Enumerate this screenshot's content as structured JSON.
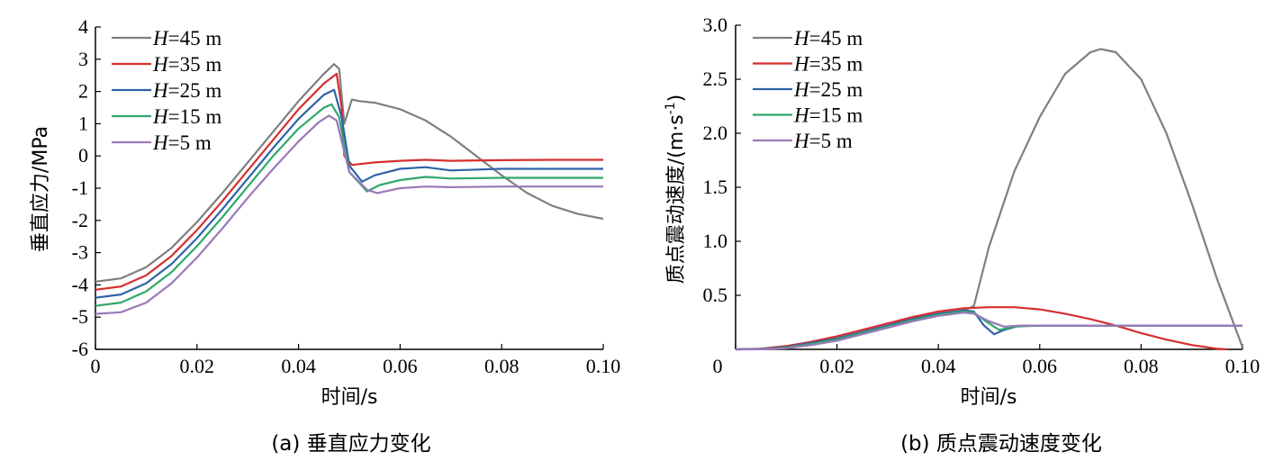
{
  "chart_data": [
    {
      "type": "line",
      "caption": "(a)  垂直应力变化",
      "xlabel": "时间/s",
      "ylabel": "垂直应力/MPa",
      "xlim": [
        0,
        0.1
      ],
      "ylim": [
        -6,
        4
      ],
      "xticks": [
        "0",
        "0.02",
        "0.04",
        "0.06",
        "0.08",
        "0.10"
      ],
      "xtick_values": [
        0,
        0.02,
        0.04,
        0.06,
        0.08,
        0.1
      ],
      "yticks": [
        "-6",
        "-5",
        "-4",
        "-3",
        "-2",
        "-1",
        "0",
        "1",
        "2",
        "3",
        "4"
      ],
      "ytick_values": [
        -6,
        -5,
        -4,
        -3,
        -2,
        -1,
        0,
        1,
        2,
        3,
        4
      ],
      "grid": false,
      "legend_position": "top-left",
      "series": [
        {
          "name": "H=45 m",
          "label_var": "H",
          "label_rest": "=45 m",
          "color": "#7f7f7f",
          "points": [
            [
              0,
              -3.9
            ],
            [
              0.005,
              -3.8
            ],
            [
              0.01,
              -3.45
            ],
            [
              0.015,
              -2.85
            ],
            [
              0.02,
              -2.05
            ],
            [
              0.025,
              -1.15
            ],
            [
              0.03,
              -0.2
            ],
            [
              0.035,
              0.75
            ],
            [
              0.04,
              1.7
            ],
            [
              0.045,
              2.55
            ],
            [
              0.047,
              2.85
            ],
            [
              0.048,
              2.7
            ],
            [
              0.049,
              1.0
            ],
            [
              0.0505,
              1.75
            ],
            [
              0.052,
              1.7
            ],
            [
              0.055,
              1.65
            ],
            [
              0.06,
              1.45
            ],
            [
              0.065,
              1.1
            ],
            [
              0.07,
              0.6
            ],
            [
              0.075,
              0.0
            ],
            [
              0.08,
              -0.6
            ],
            [
              0.085,
              -1.15
            ],
            [
              0.09,
              -1.55
            ],
            [
              0.095,
              -1.8
            ],
            [
              0.1,
              -1.95
            ]
          ]
        },
        {
          "name": "H=35 m",
          "label_var": "H",
          "label_rest": "=35 m",
          "color": "#d62f2f",
          "points": [
            [
              0,
              -4.15
            ],
            [
              0.005,
              -4.05
            ],
            [
              0.01,
              -3.7
            ],
            [
              0.015,
              -3.1
            ],
            [
              0.02,
              -2.3
            ],
            [
              0.025,
              -1.4
            ],
            [
              0.03,
              -0.45
            ],
            [
              0.035,
              0.5
            ],
            [
              0.04,
              1.45
            ],
            [
              0.045,
              2.25
            ],
            [
              0.0475,
              2.55
            ],
            [
              0.0485,
              1.5
            ],
            [
              0.049,
              0.0
            ],
            [
              0.0505,
              -0.28
            ],
            [
              0.055,
              -0.2
            ],
            [
              0.06,
              -0.15
            ],
            [
              0.065,
              -0.12
            ],
            [
              0.07,
              -0.15
            ],
            [
              0.08,
              -0.13
            ],
            [
              0.09,
              -0.12
            ],
            [
              0.1,
              -0.12
            ]
          ]
        },
        {
          "name": "H=25 m",
          "label_var": "H",
          "label_rest": "=25 m",
          "color": "#2e63a6",
          "points": [
            [
              0,
              -4.4
            ],
            [
              0.005,
              -4.3
            ],
            [
              0.01,
              -3.95
            ],
            [
              0.015,
              -3.35
            ],
            [
              0.02,
              -2.55
            ],
            [
              0.025,
              -1.65
            ],
            [
              0.03,
              -0.7
            ],
            [
              0.035,
              0.25
            ],
            [
              0.04,
              1.15
            ],
            [
              0.045,
              1.9
            ],
            [
              0.047,
              2.05
            ],
            [
              0.0485,
              1.2
            ],
            [
              0.05,
              -0.3
            ],
            [
              0.0525,
              -0.8
            ],
            [
              0.055,
              -0.6
            ],
            [
              0.06,
              -0.4
            ],
            [
              0.065,
              -0.35
            ],
            [
              0.07,
              -0.45
            ],
            [
              0.08,
              -0.4
            ],
            [
              0.09,
              -0.4
            ],
            [
              0.1,
              -0.4
            ]
          ]
        },
        {
          "name": "H=15 m",
          "label_var": "H",
          "label_rest": "=15 m",
          "color": "#2fa86b",
          "points": [
            [
              0,
              -4.65
            ],
            [
              0.005,
              -4.55
            ],
            [
              0.01,
              -4.2
            ],
            [
              0.015,
              -3.6
            ],
            [
              0.02,
              -2.8
            ],
            [
              0.025,
              -1.9
            ],
            [
              0.03,
              -0.95
            ],
            [
              0.035,
              0.0
            ],
            [
              0.04,
              0.85
            ],
            [
              0.045,
              1.5
            ],
            [
              0.0465,
              1.6
            ],
            [
              0.048,
              1.2
            ],
            [
              0.05,
              -0.5
            ],
            [
              0.0535,
              -1.1
            ],
            [
              0.056,
              -0.9
            ],
            [
              0.06,
              -0.75
            ],
            [
              0.065,
              -0.65
            ],
            [
              0.07,
              -0.7
            ],
            [
              0.08,
              -0.68
            ],
            [
              0.09,
              -0.68
            ],
            [
              0.1,
              -0.68
            ]
          ]
        },
        {
          "name": "H=5 m",
          "label_var": "H",
          "label_rest": "=5 m",
          "color": "#9a78b8",
          "points": [
            [
              0,
              -4.9
            ],
            [
              0.005,
              -4.85
            ],
            [
              0.01,
              -4.55
            ],
            [
              0.015,
              -3.95
            ],
            [
              0.02,
              -3.15
            ],
            [
              0.025,
              -2.25
            ],
            [
              0.03,
              -1.3
            ],
            [
              0.035,
              -0.4
            ],
            [
              0.04,
              0.45
            ],
            [
              0.044,
              1.05
            ],
            [
              0.046,
              1.25
            ],
            [
              0.0475,
              1.1
            ],
            [
              0.05,
              -0.5
            ],
            [
              0.0535,
              -1.05
            ],
            [
              0.0555,
              -1.15
            ],
            [
              0.06,
              -1.0
            ],
            [
              0.065,
              -0.95
            ],
            [
              0.07,
              -0.97
            ],
            [
              0.08,
              -0.95
            ],
            [
              0.09,
              -0.95
            ],
            [
              0.1,
              -0.95
            ]
          ]
        }
      ]
    },
    {
      "type": "line",
      "caption": "(b)  质点震动速度变化",
      "xlabel": "时间/s",
      "ylabel_main": "质点震动速度/(m·s",
      "ylabel_sup": "-1",
      "ylabel_end": ")",
      "xlim": [
        0,
        0.1
      ],
      "ylim": [
        0,
        3.0
      ],
      "xticks": [
        "0",
        "0.02",
        "0.04",
        "0.06",
        "0.08",
        "0.10"
      ],
      "xtick_values": [
        0,
        0.02,
        0.04,
        0.06,
        0.08,
        0.1
      ],
      "yticks": [
        "0.5",
        "1.0",
        "1.5",
        "2.0",
        "2.5",
        "3.0"
      ],
      "ytick_values": [
        0.5,
        1.0,
        1.5,
        2.0,
        2.5,
        3.0
      ],
      "grid": false,
      "legend_position": "top-left",
      "series": [
        {
          "name": "H=45 m",
          "label_var": "H",
          "label_rest": "=45 m",
          "color": "#7f7f7f",
          "points": [
            [
              0,
              0
            ],
            [
              0.005,
              0.005
            ],
            [
              0.01,
              0.03
            ],
            [
              0.015,
              0.07
            ],
            [
              0.02,
              0.12
            ],
            [
              0.025,
              0.18
            ],
            [
              0.03,
              0.24
            ],
            [
              0.035,
              0.29
            ],
            [
              0.04,
              0.33
            ],
            [
              0.045,
              0.36
            ],
            [
              0.047,
              0.4
            ],
            [
              0.05,
              0.95
            ],
            [
              0.055,
              1.65
            ],
            [
              0.06,
              2.15
            ],
            [
              0.065,
              2.55
            ],
            [
              0.07,
              2.75
            ],
            [
              0.072,
              2.78
            ],
            [
              0.075,
              2.75
            ],
            [
              0.08,
              2.5
            ],
            [
              0.085,
              2.0
            ],
            [
              0.09,
              1.35
            ],
            [
              0.095,
              0.65
            ],
            [
              0.1,
              0.02
            ]
          ]
        },
        {
          "name": "H=35 m",
          "label_var": "H",
          "label_rest": "=35 m",
          "color": "#d62f2f",
          "points": [
            [
              0,
              0
            ],
            [
              0.005,
              0.005
            ],
            [
              0.01,
              0.03
            ],
            [
              0.015,
              0.07
            ],
            [
              0.02,
              0.12
            ],
            [
              0.025,
              0.18
            ],
            [
              0.03,
              0.24
            ],
            [
              0.035,
              0.3
            ],
            [
              0.04,
              0.35
            ],
            [
              0.045,
              0.38
            ],
            [
              0.05,
              0.39
            ],
            [
              0.055,
              0.39
            ],
            [
              0.06,
              0.37
            ],
            [
              0.065,
              0.33
            ],
            [
              0.07,
              0.28
            ],
            [
              0.075,
              0.22
            ],
            [
              0.08,
              0.15
            ],
            [
              0.085,
              0.09
            ],
            [
              0.09,
              0.04
            ],
            [
              0.095,
              0.005
            ],
            [
              0.097,
              0.0
            ]
          ]
        },
        {
          "name": "H=25 m",
          "label_var": "H",
          "label_rest": "=25 m",
          "color": "#2e63a6",
          "points": [
            [
              0,
              0
            ],
            [
              0.005,
              0.003
            ],
            [
              0.01,
              0.02
            ],
            [
              0.015,
              0.06
            ],
            [
              0.02,
              0.1
            ],
            [
              0.025,
              0.16
            ],
            [
              0.03,
              0.22
            ],
            [
              0.035,
              0.28
            ],
            [
              0.04,
              0.33
            ],
            [
              0.045,
              0.36
            ],
            [
              0.047,
              0.35
            ],
            [
              0.049,
              0.22
            ],
            [
              0.051,
              0.14
            ],
            [
              0.053,
              0.18
            ],
            [
              0.056,
              0.22
            ],
            [
              0.06,
              0.22
            ],
            [
              0.07,
              0.22
            ],
            [
              0.08,
              0.22
            ],
            [
              0.09,
              0.22
            ],
            [
              0.1,
              0.22
            ]
          ]
        },
        {
          "name": "H=15 m",
          "label_var": "H",
          "label_rest": "=15 m",
          "color": "#2fa86b",
          "points": [
            [
              0,
              0
            ],
            [
              0.005,
              0.002
            ],
            [
              0.01,
              0.015
            ],
            [
              0.015,
              0.05
            ],
            [
              0.02,
              0.09
            ],
            [
              0.025,
              0.15
            ],
            [
              0.03,
              0.21
            ],
            [
              0.035,
              0.27
            ],
            [
              0.04,
              0.32
            ],
            [
              0.045,
              0.35
            ],
            [
              0.047,
              0.34
            ],
            [
              0.05,
              0.24
            ],
            [
              0.052,
              0.18
            ],
            [
              0.055,
              0.21
            ],
            [
              0.06,
              0.22
            ],
            [
              0.07,
              0.22
            ],
            [
              0.08,
              0.22
            ],
            [
              0.09,
              0.22
            ],
            [
              0.1,
              0.22
            ]
          ]
        },
        {
          "name": "H=5 m",
          "label_var": "H",
          "label_rest": "=5 m",
          "color": "#9a78b8",
          "points": [
            [
              0,
              0
            ],
            [
              0.005,
              0.001
            ],
            [
              0.01,
              0.01
            ],
            [
              0.015,
              0.04
            ],
            [
              0.02,
              0.08
            ],
            [
              0.025,
              0.14
            ],
            [
              0.03,
              0.2
            ],
            [
              0.035,
              0.26
            ],
            [
              0.04,
              0.31
            ],
            [
              0.045,
              0.34
            ],
            [
              0.047,
              0.33
            ],
            [
              0.05,
              0.26
            ],
            [
              0.053,
              0.21
            ],
            [
              0.056,
              0.22
            ],
            [
              0.06,
              0.22
            ],
            [
              0.07,
              0.22
            ],
            [
              0.08,
              0.22
            ],
            [
              0.09,
              0.22
            ],
            [
              0.1,
              0.22
            ]
          ]
        }
      ]
    }
  ],
  "bottom_left_tick": "0"
}
